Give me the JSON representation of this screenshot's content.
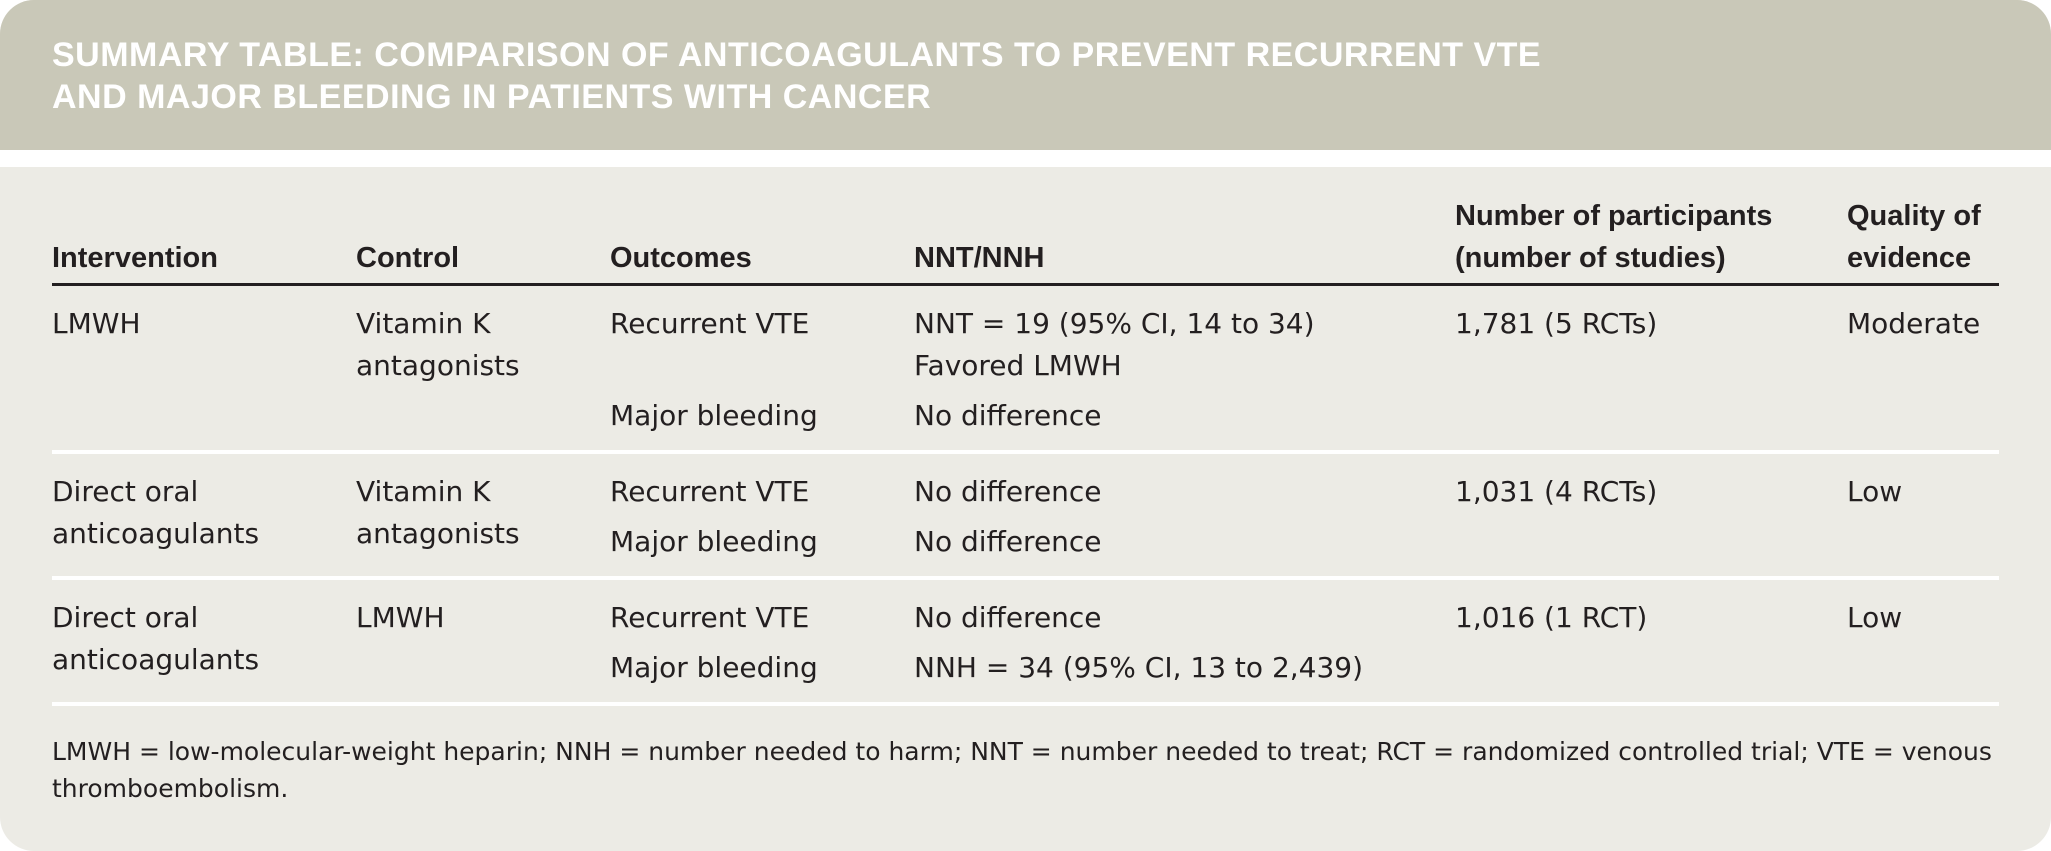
{
  "header": {
    "title_lines": [
      "SUMMARY TABLE: COMPARISON OF ANTICOAGULANTS TO PREVENT RECURRENT VTE",
      "AND MAJOR BLEEDING IN PATIENTS WITH CANCER"
    ]
  },
  "table": {
    "columns": [
      [
        "Intervention"
      ],
      [
        "Control"
      ],
      [
        "Outcomes"
      ],
      [
        "NNT/NNH"
      ],
      [
        "Number of participants",
        "(number of studies)"
      ],
      [
        "Quality of",
        "evidence"
      ]
    ],
    "rows": [
      {
        "intervention": [
          "LMWH"
        ],
        "control": [
          "Vitamin K",
          "antagonists"
        ],
        "outcomes": [
          {
            "outcome": "Recurrent VTE",
            "result": "NNT = 19 (95% CI, 14 to 34)",
            "note": "Favored LMWH"
          },
          {
            "outcome": "Major bleeding",
            "result": "No difference"
          }
        ],
        "participants": "1,781 (5 RCTs)",
        "quality": "Moderate"
      },
      {
        "intervention": [
          "Direct oral",
          "anticoagulants"
        ],
        "control": [
          "Vitamin K",
          "antagonists"
        ],
        "outcomes": [
          {
            "outcome": "Recurrent VTE",
            "result": "No difference"
          },
          {
            "outcome": "Major bleeding",
            "result": "No difference"
          }
        ],
        "participants": "1,031 (4 RCTs)",
        "quality": "Low"
      },
      {
        "intervention": [
          "Direct oral",
          "anticoagulants"
        ],
        "control": [
          "LMWH"
        ],
        "outcomes": [
          {
            "outcome": "Recurrent VTE",
            "result": "No difference"
          },
          {
            "outcome": "Major bleeding",
            "result": "NNH = 34 (95% CI, 13 to 2,439)"
          }
        ],
        "participants": "1,016 (1 RCT)",
        "quality": "Low"
      }
    ]
  },
  "footnote": "LMWH = low-molecular-weight heparin; NNH = number needed to harm; NNT = number needed to treat; RCT = randomized controlled trial; VTE = venous thromboembolism."
}
